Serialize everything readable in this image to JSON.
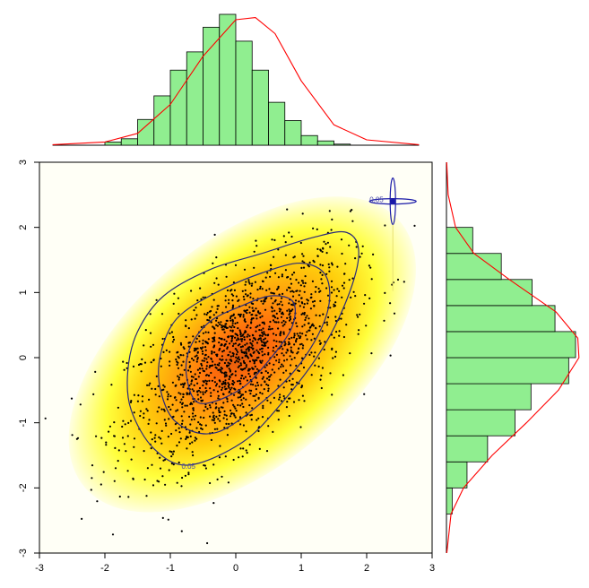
{
  "chart_data": {
    "type": "scatter",
    "title": "",
    "xlabel": "",
    "ylabel": "",
    "xlim": [
      -3,
      3
    ],
    "ylim": [
      -3,
      3
    ],
    "x_ticks": [
      -3,
      -2,
      -1,
      0,
      1,
      2,
      3
    ],
    "y_ticks": [
      -3,
      -2,
      -1,
      0,
      1,
      2,
      3
    ],
    "x_tick_labels": [
      "-3",
      "-2",
      "-1",
      "0",
      "1",
      "2",
      "3"
    ],
    "y_tick_labels": [
      "-3",
      "-2",
      "-1",
      "0",
      "1",
      "2",
      "3"
    ],
    "grid": false,
    "legend": "none",
    "density_colors": [
      "#ffffe0",
      "#ffff33",
      "#ffcc00",
      "#ff9900",
      "#ff6600",
      "#e05000"
    ],
    "point_color": "#000000",
    "contour_color": "#2b2b7a",
    "contours": [
      {
        "label": "0.05",
        "path": [
          [
            -0.72,
            -1.65
          ],
          [
            -1.25,
            -1.4
          ],
          [
            -1.6,
            -0.8
          ],
          [
            -1.65,
            -0.2
          ],
          [
            -1.5,
            0.4
          ],
          [
            -1.1,
            0.95
          ],
          [
            -0.4,
            1.35
          ],
          [
            0.4,
            1.6
          ],
          [
            1.2,
            1.85
          ],
          [
            1.7,
            1.92
          ],
          [
            1.88,
            1.6
          ],
          [
            1.7,
            0.9
          ],
          [
            1.3,
            0.1
          ],
          [
            0.7,
            -0.7
          ],
          [
            0.1,
            -1.3
          ],
          [
            -0.72,
            -1.65
          ]
        ]
      },
      {
        "label": "",
        "path": [
          [
            -0.3,
            -1.15
          ],
          [
            -0.9,
            -1.0
          ],
          [
            -1.15,
            -0.5
          ],
          [
            -1.15,
            0.05
          ],
          [
            -0.9,
            0.6
          ],
          [
            -0.3,
            1.0
          ],
          [
            0.4,
            1.3
          ],
          [
            1.0,
            1.45
          ],
          [
            1.38,
            1.25
          ],
          [
            1.4,
            0.7
          ],
          [
            1.05,
            0.0
          ],
          [
            0.5,
            -0.6
          ],
          [
            -0.3,
            -1.15
          ]
        ]
      },
      {
        "label": "",
        "path": [
          [
            -0.55,
            -0.7
          ],
          [
            -0.75,
            -0.3
          ],
          [
            -0.7,
            0.15
          ],
          [
            -0.4,
            0.55
          ],
          [
            0.1,
            0.8
          ],
          [
            0.55,
            0.95
          ],
          [
            0.88,
            0.85
          ],
          [
            0.85,
            0.45
          ],
          [
            0.5,
            -0.05
          ],
          [
            0.05,
            -0.5
          ],
          [
            -0.55,
            -0.7
          ]
        ]
      }
    ],
    "outlier_marker": {
      "x": 2.4,
      "y": 2.4,
      "label": "0.05"
    },
    "top_histogram": {
      "bin_edges": [
        -2.0,
        -1.75,
        -1.5,
        -1.25,
        -1.0,
        -0.75,
        -0.5,
        -0.25,
        0.0,
        0.25,
        0.5,
        0.75,
        1.0,
        1.25,
        1.5,
        1.75
      ],
      "counts": [
        3,
        6,
        24,
        46,
        70,
        87,
        110,
        122,
        97,
        70,
        40,
        23,
        9,
        4,
        1
      ],
      "fill": "#90ee90",
      "curve_color": "#ff0000",
      "curve": [
        [
          -2.8,
          0.5
        ],
        [
          -2.0,
          3
        ],
        [
          -1.5,
          11
        ],
        [
          -1.0,
          38
        ],
        [
          -0.5,
          83
        ],
        [
          0.0,
          117
        ],
        [
          0.3,
          119
        ],
        [
          0.6,
          104
        ],
        [
          1.0,
          60
        ],
        [
          1.5,
          19
        ],
        [
          2.0,
          5
        ],
        [
          2.8,
          0.5
        ]
      ]
    },
    "right_histogram": {
      "bin_edges": [
        -2.4,
        -2.0,
        -1.6,
        -1.2,
        -0.8,
        -0.4,
        0.0,
        0.4,
        0.8,
        1.2,
        1.6,
        2.0
      ],
      "counts": [
        5,
        18,
        36,
        60,
        74,
        107,
        113,
        95,
        75,
        48,
        23
      ],
      "fill": "#90ee90",
      "curve_color": "#ff0000",
      "curve": [
        [
          -3.0,
          0.3
        ],
        [
          -2.4,
          4
        ],
        [
          -2.0,
          15
        ],
        [
          -1.5,
          40
        ],
        [
          -1.0,
          70
        ],
        [
          -0.5,
          98
        ],
        [
          0.0,
          116
        ],
        [
          0.3,
          115
        ],
        [
          0.7,
          96
        ],
        [
          1.2,
          55
        ],
        [
          1.6,
          24
        ],
        [
          2.0,
          8
        ],
        [
          2.5,
          1.5
        ],
        [
          3.0,
          0.2
        ]
      ]
    },
    "n_points": 1600
  }
}
